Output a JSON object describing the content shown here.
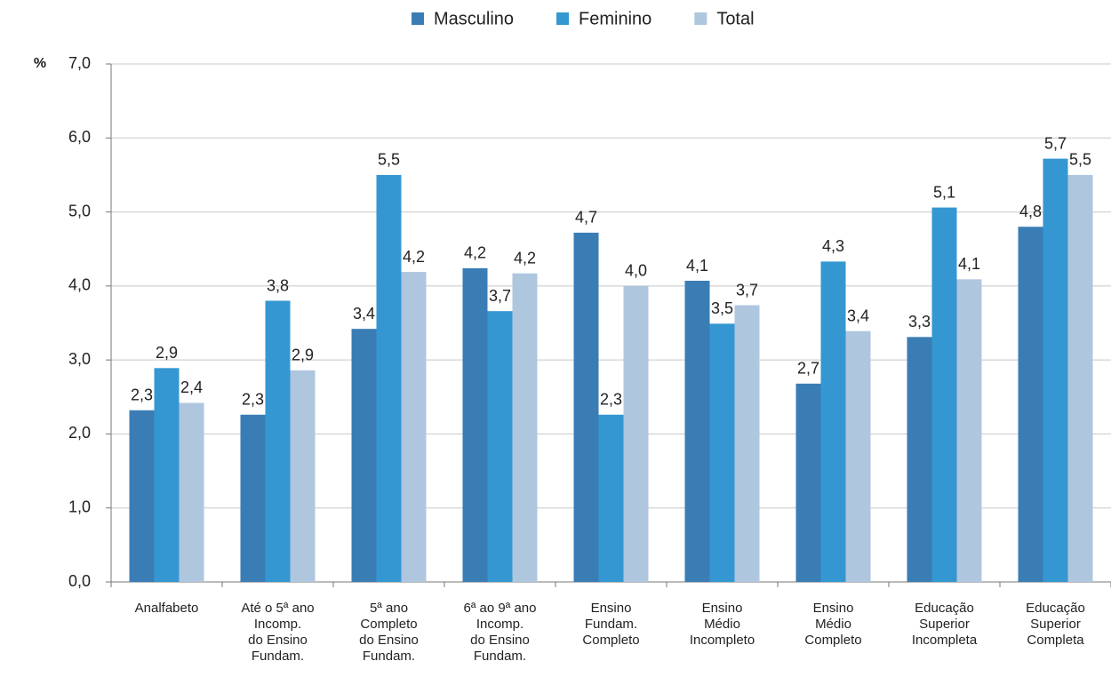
{
  "chart_data": {
    "type": "bar",
    "y_label": "%",
    "categories": [
      "Analfabeto",
      "Até o 5ª ano\nIncomp.\ndo Ensino\nFundam.",
      "5ª ano\nCompleto\ndo Ensino\nFundam.",
      "6ª ao 9ª ano\nIncomp.\ndo Ensino\nFundam.",
      "Ensino\nFundam.\nCompleto",
      "Ensino\nMédio\nIncompleto",
      "Ensino\nMédio\nCompleto",
      "Educação\nSuperior\nIncompleta",
      "Educação\nSuperior\nCompleta"
    ],
    "series": [
      {
        "name": "Masculino",
        "color": "#3a7db5",
        "values": [
          2.32,
          2.26,
          3.42,
          4.24,
          4.72,
          4.07,
          2.68,
          3.31,
          4.8
        ],
        "value_labels": [
          "2,3",
          "2,3",
          "3,4",
          "4,2",
          "4,7",
          "4,1",
          "2,7",
          "3,3",
          "4,8"
        ]
      },
      {
        "name": "Feminino",
        "color": "#3597d1",
        "values": [
          2.89,
          3.8,
          5.5,
          3.66,
          2.26,
          3.49,
          4.33,
          5.06,
          5.72
        ],
        "value_labels": [
          "2,9",
          "3,8",
          "5,5",
          "3,7",
          "2,3",
          "3,5",
          "4,3",
          "5,1",
          "5,7"
        ]
      },
      {
        "name": "Total",
        "color": "#afc6df",
        "values": [
          2.42,
          2.86,
          4.19,
          4.17,
          4.0,
          3.74,
          3.39,
          4.09,
          5.5
        ],
        "value_labels": [
          "2,4",
          "2,9",
          "4,2",
          "4,2",
          "4,0",
          "3,7",
          "3,4",
          "4,1",
          "5,5"
        ]
      }
    ],
    "ylim": [
      0,
      7
    ],
    "yticks": [
      {
        "value": 0,
        "label": "0,0"
      },
      {
        "value": 1,
        "label": "1,0"
      },
      {
        "value": 2,
        "label": "2,0"
      },
      {
        "value": 3,
        "label": "3,0"
      },
      {
        "value": 4,
        "label": "4,0"
      },
      {
        "value": 5,
        "label": "5,0"
      },
      {
        "value": 6,
        "label": "6,0"
      },
      {
        "value": 7,
        "label": "7,0"
      }
    ],
    "grid": true,
    "legend": "top"
  }
}
